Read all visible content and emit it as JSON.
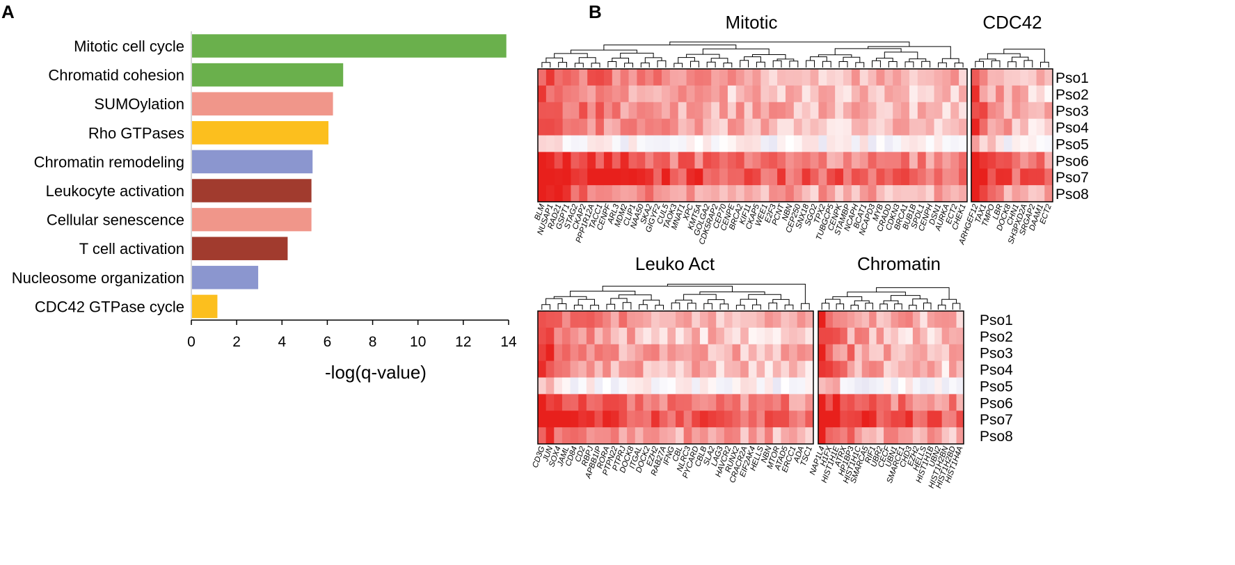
{
  "chart_data": [
    {
      "panel": "A",
      "type": "bar",
      "orientation": "horizontal",
      "categories": [
        "Mitotic cell cycle",
        "Chromatid cohesion",
        "SUMOylation",
        "Rho GTPases",
        "Chromatin remodeling",
        "Leukocyte activation",
        "Cellular senescence",
        "T cell activation",
        "Nucleosome organization",
        "CDC42 GTPase cycle"
      ],
      "values": [
        13.9,
        6.7,
        6.25,
        6.05,
        5.35,
        5.3,
        5.3,
        4.25,
        2.95,
        1.15
      ],
      "colors": [
        "#6ab04c",
        "#6ab04c",
        "#f0968a",
        "#fcbf1e",
        "#8b96cf",
        "#a13b2e",
        "#f0968a",
        "#a13b2e",
        "#8b96cf",
        "#fcbf1e"
      ],
      "xlabel": "-log(q-value)",
      "ylabel": "",
      "xlim": [
        0,
        14
      ],
      "xticks": [
        "0",
        "2",
        "4",
        "6",
        "8",
        "10",
        "12",
        "14"
      ]
    },
    {
      "panel": "B",
      "type": "heatmap",
      "heatmaps": [
        {
          "title": "Mitotic",
          "rows": [
            "Pso1",
            "Pso2",
            "Pso3",
            "Pso4",
            "Pso5",
            "Pso6",
            "Pso7",
            "Pso8"
          ],
          "genes": [
            "BLM",
            "NUSAP1",
            "RAD21",
            "GSPT1",
            "STAG2",
            "CKAP2",
            "PPP1R12A",
            "TACC1",
            "CENPF",
            "ARL3",
            "MDM2",
            "CLIP1",
            "NAA50",
            "SKA2",
            "GIGYF2",
            "CUL5",
            "TAOK3",
            "MNAT1",
            "XPC",
            "KMT5A",
            "GOLGA2",
            "CDK5RAP2",
            "CEP70",
            "CENPE",
            "BRCA2",
            "KIF11",
            "CKAP5",
            "WEE1",
            "E2F3",
            "PCNT",
            "NBN",
            "CEP250",
            "SNX18",
            "SGO2",
            "TPX2",
            "TUBGCP5",
            "CENPK",
            "STAMBP",
            "NCAPH",
            "BCAT1",
            "NCAPD3",
            "MYB",
            "CRADD",
            "CDKN3",
            "BRCA1",
            "BUB1B",
            "SPDL1",
            "CENPH",
            "DSN1",
            "AURKA",
            "ECT2",
            "CHEK1"
          ]
        },
        {
          "title": "CDC42",
          "rows": [
            "Pso1",
            "Pso2",
            "Pso3",
            "Pso4",
            "Pso5",
            "Pso6",
            "Pso7",
            "Pso8"
          ],
          "genes": [
            "ARHGEF12",
            "TAX1",
            "TMPO",
            "LBR",
            "DOCK8",
            "CHN1",
            "SH3PXD2A",
            "SRGAP2",
            "DAAM1",
            "ECT2"
          ]
        },
        {
          "title": "Leuko Act",
          "rows": [
            "Pso1",
            "Pso2",
            "Pso3",
            "Pso4",
            "Pso5",
            "Pso6",
            "Pso7",
            "Pso8"
          ],
          "genes": [
            "CD3G",
            "JUN",
            "SOX4",
            "JAML",
            "CD84",
            "CD2",
            "RBPJ",
            "APBB1IP",
            "RORA",
            "PTPN22",
            "PTPRJ",
            "DOCK8",
            "ITGAL",
            "DOCK2",
            "EZH2",
            "RAB27A",
            "IFNG",
            "CBL",
            "NLRC3",
            "PYCARD",
            "CBLB",
            "SLA2",
            "LAG3",
            "HAVCR2",
            "RUNX2",
            "CRACR2A",
            "EIF2AK4",
            "HELLS",
            "NBN",
            "MTOR",
            "ATAD5",
            "ERCC1",
            "ADA",
            "TSC1"
          ]
        },
        {
          "title": "Chromatin",
          "rows": [
            "Pso1",
            "Pso2",
            "Pso3",
            "Pso4",
            "Pso5",
            "Pso6",
            "Pso7",
            "Pso8"
          ],
          "genes": [
            "NAP1L4",
            "H1FX",
            "HIST1H1E",
            "ATRX",
            "HP1BP3",
            "HIST1H1C",
            "SMARCA5",
            "RIF1",
            "UBR2",
            "CECF",
            "UBN1",
            "SMARCE1",
            "CHD3",
            "EZH2",
            "HELLS",
            "HIST1H1B",
            "UBN2",
            "HIST1H2BN",
            "HIST1H2BD",
            "HIST1H4A"
          ]
        }
      ],
      "color_scale": {
        "low": "#8a82c8",
        "mid": "#ffffff",
        "high": "#e8201c"
      }
    }
  ],
  "labels": {
    "panel_a": "A",
    "panel_b": "B"
  }
}
